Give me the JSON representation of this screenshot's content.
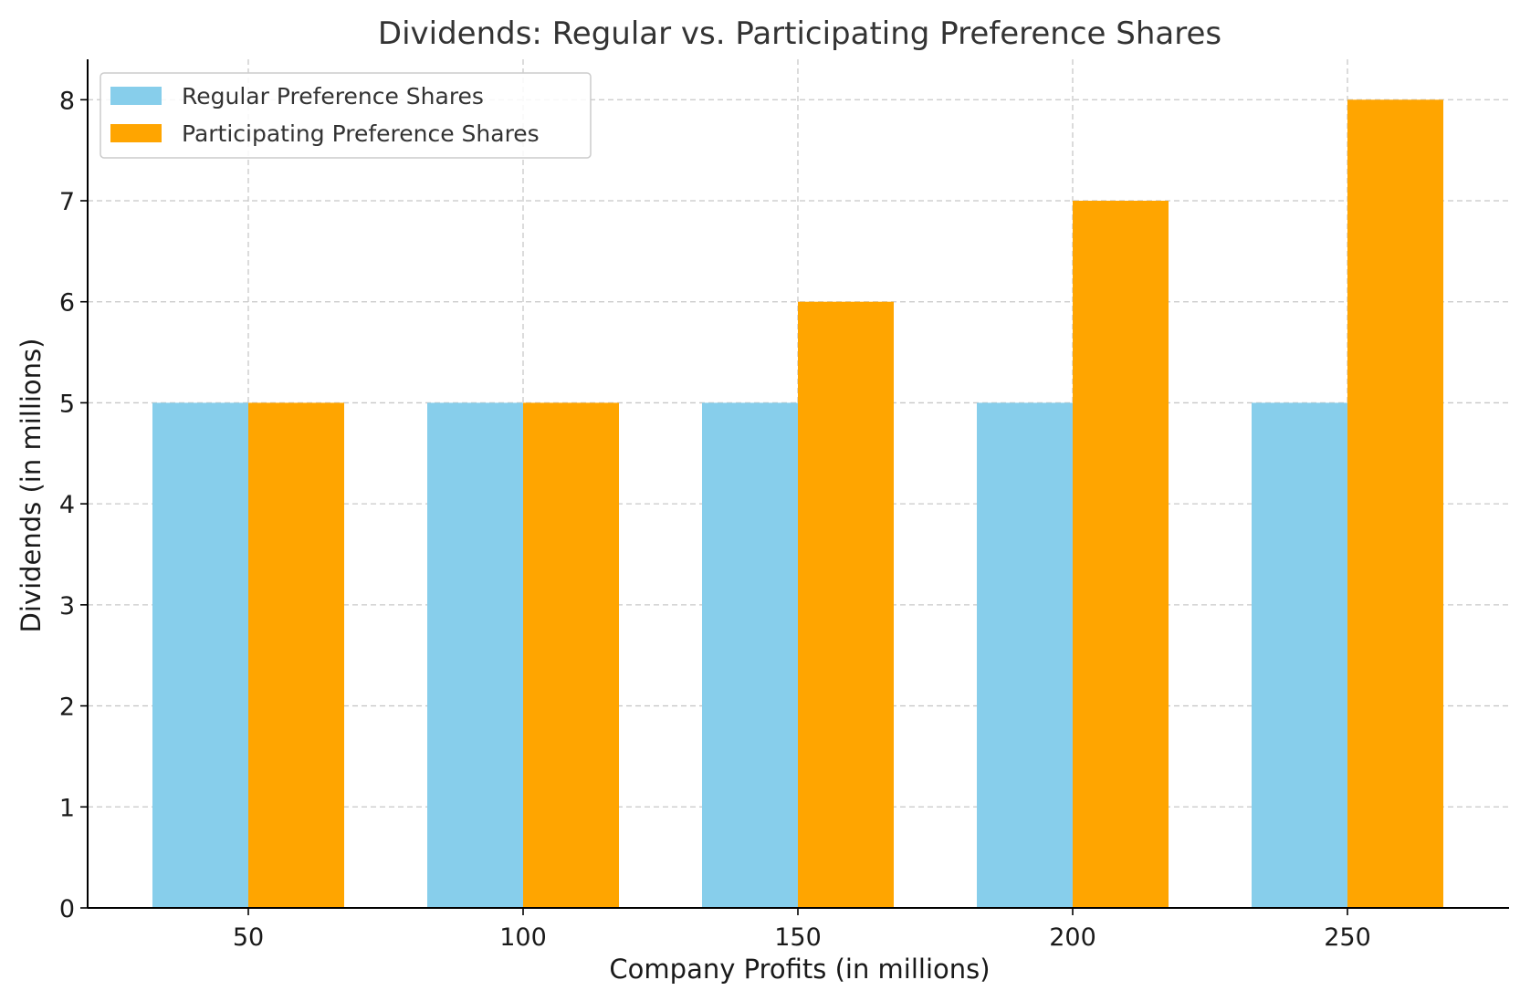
{
  "chart_data": {
    "type": "bar",
    "title": "Dividends: Regular vs. Participating Preference Shares",
    "xlabel": "Company Profits (in millions)",
    "ylabel": "Dividends (in millions)",
    "categories": [
      "50",
      "100",
      "150",
      "200",
      "250"
    ],
    "series": [
      {
        "name": "Regular Preference Shares",
        "values": [
          5,
          5,
          5,
          5,
          5
        ],
        "color": "#87CEEB"
      },
      {
        "name": "Participating Preference Shares",
        "values": [
          5,
          5,
          6,
          7,
          8
        ],
        "color": "#FFA500"
      }
    ],
    "ylim": [
      0,
      8.4
    ],
    "yticks": [
      "0",
      "1",
      "2",
      "3",
      "4",
      "5",
      "6",
      "7",
      "8"
    ],
    "grid": true,
    "legend_position": "top-left"
  }
}
